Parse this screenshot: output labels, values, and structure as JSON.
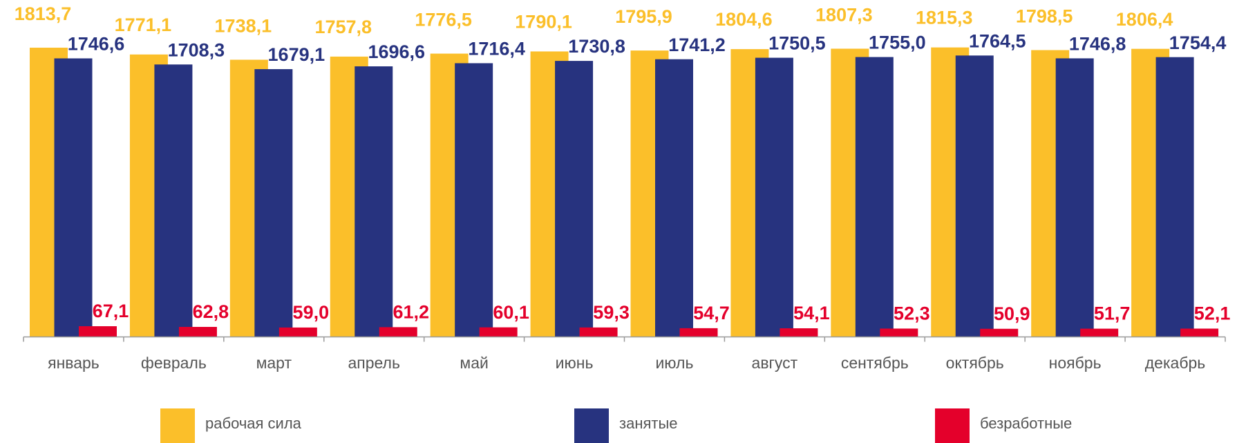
{
  "chart_data": {
    "type": "bar",
    "categories": [
      "январь",
      "февраль",
      "март",
      "апрель",
      "май",
      "июнь",
      "июль",
      "август",
      "сентябрь",
      "октябрь",
      "ноябрь",
      "декабрь"
    ],
    "ylim": [
      0,
      2000
    ],
    "series": [
      {
        "name": "рабочая сила",
        "color": "#fbbf2a",
        "values": [
          1813.7,
          1771.1,
          1738.1,
          1757.8,
          1776.5,
          1790.1,
          1795.9,
          1804.6,
          1807.3,
          1815.3,
          1798.5,
          1806.4
        ],
        "value_labels": [
          "1813,7",
          "1771,1",
          "1738,1",
          "1757,8",
          "1776,5",
          "1790,1",
          "1795,9",
          "1804,6",
          "1807,3",
          "1815,3",
          "1798,5",
          "1806,4"
        ]
      },
      {
        "name": "занятые",
        "color": "#27337f",
        "values": [
          1746.6,
          1708.3,
          1679.1,
          1696.6,
          1716.4,
          1730.8,
          1741.2,
          1750.5,
          1755.0,
          1764.5,
          1746.8,
          1754.4
        ],
        "value_labels": [
          "1746,6",
          "1708,3",
          "1679,1",
          "1696,6",
          "1716,4",
          "1730,8",
          "1741,2",
          "1750,5",
          "1755,0",
          "1764,5",
          "1746,8",
          "1754,4"
        ]
      },
      {
        "name": "безработные",
        "color": "#e4002b",
        "values": [
          67.1,
          62.8,
          59.0,
          61.2,
          60.1,
          59.3,
          54.7,
          54.1,
          52.3,
          50.9,
          51.7,
          52.1
        ],
        "value_labels": [
          "67,1",
          "62,8",
          "59,0",
          "61,2",
          "60,1",
          "59,3",
          "54,7",
          "54,1",
          "52,3",
          "50,9",
          "51,7",
          "52,1"
        ]
      }
    ]
  }
}
